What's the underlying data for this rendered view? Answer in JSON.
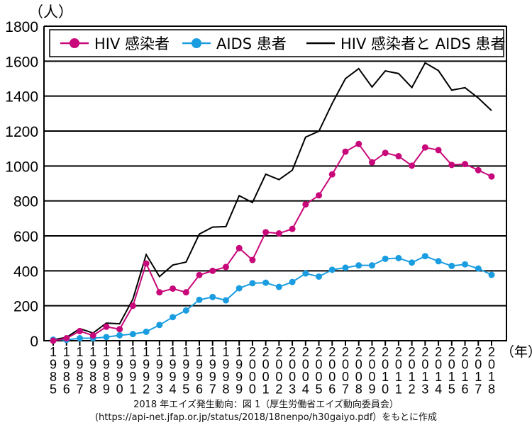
{
  "chart_data": {
    "type": "line",
    "y_unit_label": "（人）",
    "x_unit_label": "（年）",
    "ylim": [
      0,
      1800
    ],
    "yticks": [
      0,
      200,
      400,
      600,
      800,
      1000,
      1200,
      1400,
      1600,
      1800
    ],
    "grid": true,
    "legend_position": "top",
    "x": [
      1985,
      1986,
      1987,
      1988,
      1989,
      1990,
      1991,
      1992,
      1993,
      1994,
      1995,
      1996,
      1997,
      1998,
      1999,
      2000,
      2001,
      2002,
      2003,
      2004,
      2005,
      2006,
      2007,
      2008,
      2009,
      2010,
      2011,
      2012,
      2013,
      2014,
      2015,
      2016,
      2017,
      2018
    ],
    "series": [
      {
        "name": "HIV 感染者",
        "color": "#c8087a",
        "markers": true,
        "values": [
          0,
          14,
          55,
          30,
          80,
          66,
          200,
          442,
          277,
          298,
          277,
          376,
          400,
          422,
          530,
          462,
          621,
          614,
          640,
          780,
          832,
          952,
          1082,
          1126,
          1021,
          1075,
          1056,
          1002,
          1106,
          1091,
          1006,
          1011,
          976,
          940
        ]
      },
      {
        "name": "AIDS 患者",
        "color": "#1a9de0",
        "markers": true,
        "values": [
          6,
          5,
          14,
          14,
          21,
          31,
          38,
          51,
          90,
          135,
          173,
          234,
          250,
          231,
          300,
          329,
          332,
          308,
          336,
          385,
          367,
          406,
          418,
          431,
          431,
          469,
          473,
          447,
          484,
          455,
          428,
          437,
          413,
          377
        ]
      },
      {
        "name": "HIV 感染者と AIDS 患者",
        "color": "#000000",
        "markers": false,
        "values": [
          6,
          19,
          69,
          44,
          101,
          97,
          238,
          493,
          367,
          433,
          450,
          610,
          650,
          653,
          830,
          791,
          953,
          922,
          976,
          1165,
          1199,
          1358,
          1500,
          1557,
          1452,
          1544,
          1529,
          1449,
          1590,
          1546,
          1434,
          1448,
          1389,
          1317
        ]
      }
    ]
  },
  "caption": {
    "line1": "2018 年エイズ発生動向：図 1（厚生労働省エイズ動向委員会）",
    "line2": "(https://api-net.jfap.or.jp/status/2018/18nenpo/h30gaiyo.pdf）をもとに作成"
  }
}
